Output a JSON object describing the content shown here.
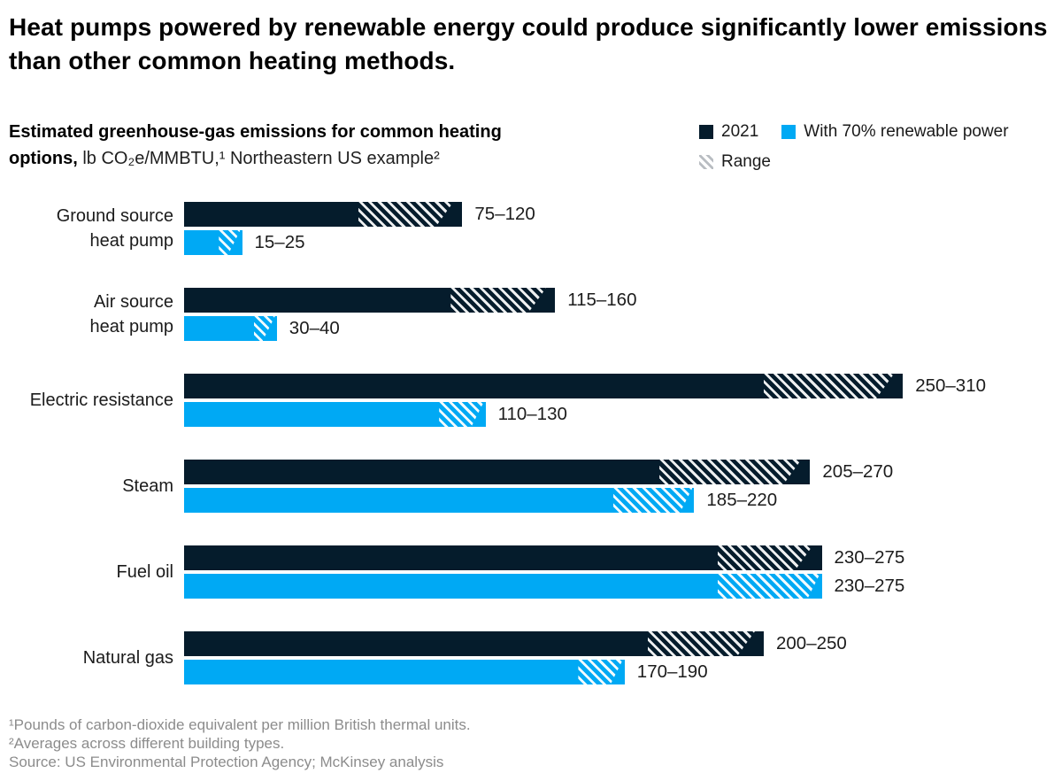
{
  "title": "Heat pumps powered by renewable energy could produce significantly lower emissions than other common heating methods.",
  "subtitle": {
    "bold": "Estimated greenhouse-gas emissions for common heating options,",
    "rest": "lb CO₂e/MMBTU,¹ Northeastern US example²"
  },
  "legend": {
    "items": [
      {
        "label": "2021",
        "swatch": "dark"
      },
      {
        "label": "With 70% renewable power",
        "swatch": "blue"
      },
      {
        "label": "Range",
        "swatch": "hatch"
      }
    ]
  },
  "colors": {
    "dark_navy": "#051C2C",
    "electric_blue": "#00A9F4"
  },
  "chart_data": {
    "type": "bar",
    "orientation": "horizontal",
    "unit": "lb CO2e/MMBTU",
    "categories": [
      "Ground source heat pump",
      "Air source heat pump",
      "Electric resistance",
      "Steam",
      "Fuel oil",
      "Natural gas"
    ],
    "category_lines": [
      [
        "Ground source",
        "heat pump"
      ],
      [
        "Air source",
        "heat pump"
      ],
      [
        "Electric resistance"
      ],
      [
        "Steam"
      ],
      [
        "Fuel oil"
      ],
      [
        "Natural gas"
      ]
    ],
    "series": [
      {
        "name": "2021",
        "color": "#051C2C",
        "hatch_style": "on-dark",
        "ranges": [
          [
            75,
            120
          ],
          [
            115,
            160
          ],
          [
            250,
            310
          ],
          [
            205,
            270
          ],
          [
            230,
            275
          ],
          [
            200,
            250
          ]
        ],
        "labels": [
          "75–120",
          "115–160",
          "250–310",
          "205–270",
          "230–275",
          "200–250"
        ]
      },
      {
        "name": "With 70% renewable power",
        "color": "#00A9F4",
        "hatch_style": "on-blue",
        "ranges": [
          [
            15,
            25
          ],
          [
            30,
            40
          ],
          [
            110,
            130
          ],
          [
            185,
            220
          ],
          [
            230,
            275
          ],
          [
            170,
            190
          ]
        ],
        "labels": [
          "15–25",
          "30–40",
          "110–130",
          "185–220",
          "230–275",
          "170–190"
        ]
      }
    ],
    "range_meaning": "hatched section of each bar spans min to max of range",
    "xlim": [
      0,
      310
    ],
    "grid": false,
    "legend_position": "top-right"
  },
  "footnotes": [
    "¹Pounds of carbon-dioxide equivalent per million British thermal units.",
    "²Averages across different building types.",
    "Source: US Environmental Protection Agency; McKinsey analysis"
  ]
}
